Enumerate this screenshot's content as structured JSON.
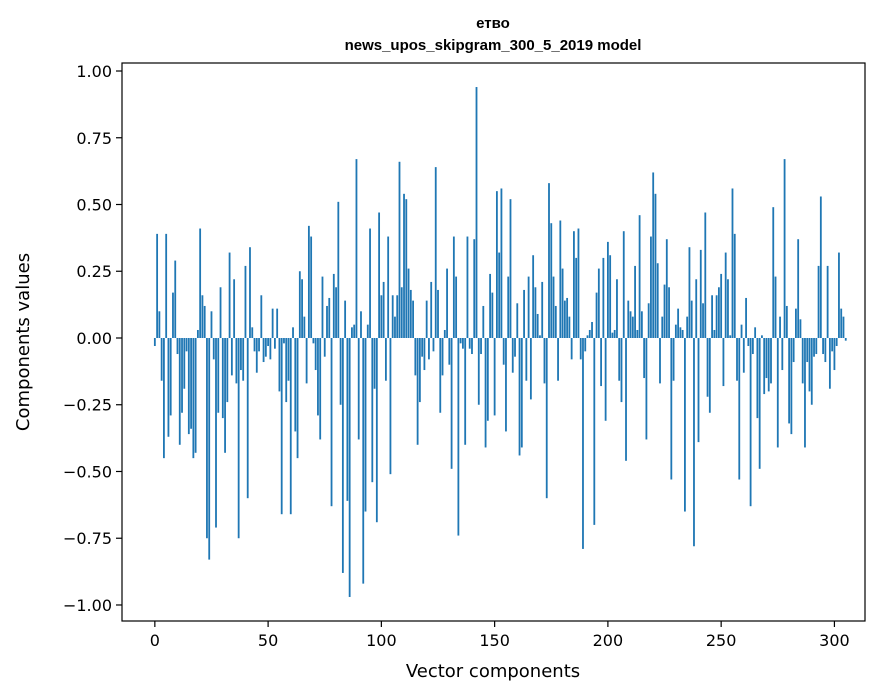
{
  "chart_data": {
    "type": "bar",
    "title": "етво",
    "subtitle": "news_upos_skipgram_300_5_2019 model",
    "xlabel": "Vector components",
    "ylabel": "Components values",
    "xlim": [
      -14.5,
      313.5
    ],
    "ylim": [
      -1.06,
      1.03
    ],
    "xticks": [
      0,
      50,
      100,
      150,
      200,
      250,
      300
    ],
    "xtick_labels": [
      "0",
      "50",
      "100",
      "150",
      "200",
      "250",
      "300"
    ],
    "yticks": [
      1.0,
      0.75,
      0.5,
      0.25,
      0.0,
      -0.25,
      -0.5,
      -0.75,
      -1.0
    ],
    "ytick_labels": [
      "1.00",
      "0.75",
      "0.50",
      "0.25",
      "0.00",
      "−0.25",
      "−0.50",
      "−0.75",
      "−1.00"
    ],
    "bar_color": "#1f77b4",
    "values": [
      -0.03,
      0.39,
      0.1,
      -0.16,
      -0.45,
      0.39,
      -0.37,
      -0.29,
      0.17,
      0.29,
      -0.06,
      -0.4,
      -0.28,
      -0.19,
      -0.05,
      -0.36,
      -0.34,
      -0.45,
      -0.43,
      0.03,
      0.41,
      0.16,
      0.12,
      -0.75,
      -0.83,
      0.1,
      -0.08,
      -0.71,
      -0.28,
      0.19,
      -0.3,
      -0.43,
      -0.24,
      0.32,
      -0.14,
      0.22,
      -0.17,
      -0.75,
      -0.12,
      -0.16,
      0.27,
      -0.6,
      0.34,
      0.04,
      -0.05,
      -0.13,
      -0.05,
      0.16,
      -0.09,
      -0.07,
      -0.03,
      -0.08,
      0.11,
      -0.04,
      0.11,
      -0.2,
      -0.66,
      -0.02,
      -0.24,
      -0.16,
      -0.66,
      0.04,
      -0.35,
      -0.45,
      0.25,
      0.22,
      0.08,
      -0.17,
      0.42,
      0.38,
      -0.02,
      -0.12,
      -0.29,
      -0.38,
      0.23,
      -0.07,
      0.12,
      0.15,
      -0.63,
      0.24,
      0.19,
      0.51,
      -0.25,
      -0.88,
      0.14,
      -0.61,
      -0.97,
      0.04,
      0.05,
      0.67,
      -0.38,
      0.1,
      -0.92,
      -0.65,
      0.05,
      0.41,
      -0.54,
      -0.19,
      -0.69,
      0.47,
      0.16,
      0.21,
      -0.16,
      0.38,
      -0.51,
      0.16,
      0.08,
      0.16,
      0.66,
      0.19,
      0.54,
      0.52,
      0.26,
      0.18,
      0.14,
      -0.14,
      -0.4,
      -0.24,
      -0.07,
      -0.12,
      0.14,
      -0.08,
      0.21,
      -0.05,
      0.64,
      0.18,
      -0.28,
      -0.14,
      0.03,
      0.26,
      -0.1,
      -0.49,
      0.38,
      0.23,
      -0.74,
      -0.02,
      -0.04,
      -0.4,
      0.38,
      -0.04,
      -0.06,
      0.37,
      0.94,
      -0.25,
      -0.06,
      0.12,
      -0.41,
      -0.31,
      0.24,
      0.17,
      -0.29,
      0.55,
      0.32,
      0.56,
      -0.1,
      -0.35,
      0.23,
      0.52,
      -0.13,
      -0.07,
      0.13,
      -0.44,
      -0.41,
      0.18,
      -0.16,
      0.23,
      -0.23,
      0.31,
      0.19,
      0.09,
      0.01,
      0.21,
      -0.17,
      -0.6,
      0.58,
      0.43,
      0.23,
      0.12,
      -0.16,
      0.44,
      0.26,
      0.14,
      0.15,
      0.08,
      -0.08,
      0.4,
      0.3,
      0.41,
      -0.08,
      -0.79,
      -0.05,
      0.01,
      0.03,
      0.06,
      -0.7,
      0.17,
      0.26,
      -0.18,
      0.3,
      -0.31,
      0.36,
      0.31,
      0.02,
      0.03,
      0.22,
      -0.16,
      -0.24,
      0.4,
      -0.46,
      0.14,
      0.1,
      0.08,
      0.27,
      0.03,
      0.46,
      0.1,
      -0.15,
      -0.38,
      0.13,
      0.38,
      0.62,
      0.54,
      0.28,
      -0.17,
      0.08,
      0.2,
      0.37,
      0.19,
      -0.53,
      -0.16,
      0.05,
      0.11,
      0.04,
      0.03,
      -0.65,
      0.08,
      0.34,
      0.14,
      -0.78,
      0.22,
      -0.39,
      0.33,
      0.13,
      0.47,
      -0.22,
      -0.28,
      0.16,
      0.03,
      0.16,
      0.19,
      0.24,
      -0.18,
      0.32,
      0.22,
      0.01,
      0.56,
      0.39,
      -0.16,
      -0.53,
      0.05,
      -0.13,
      0.15,
      -0.03,
      -0.63,
      -0.06,
      0.04,
      -0.3,
      -0.49,
      0.01,
      -0.21,
      -0.15,
      -0.2,
      -0.17,
      0.49,
      0.23,
      -0.41,
      0.08,
      -0.12,
      0.67,
      0.12,
      -0.32,
      -0.36,
      -0.09,
      0.11,
      0.37,
      0.07,
      -0.17,
      -0.41,
      -0.09,
      -0.2,
      -0.25,
      -0.07,
      -0.06,
      0.27,
      0.53,
      -0.06,
      -0.09,
      0.27,
      -0.19,
      -0.05,
      -0.12,
      -0.03,
      0.32,
      0.11,
      0.08,
      -0.01
    ]
  }
}
